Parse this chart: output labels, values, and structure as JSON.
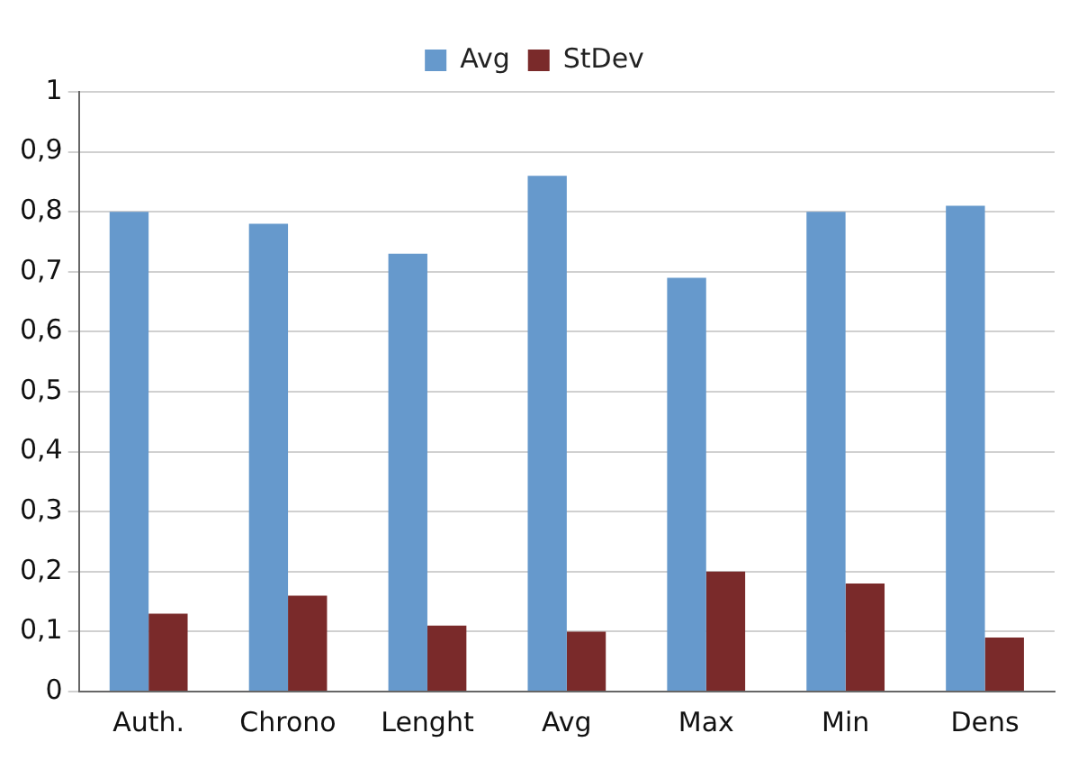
{
  "chart_data": {
    "type": "bar",
    "categories": [
      "Auth.",
      "Chrono",
      "Lenght",
      "Avg",
      "Max",
      "Min",
      "Dens"
    ],
    "series": [
      {
        "name": "Avg",
        "color": "#6699cc",
        "values": [
          0.8,
          0.78,
          0.73,
          0.86,
          0.69,
          0.8,
          0.81
        ]
      },
      {
        "name": "StDev",
        "color": "#7a2a2a",
        "values": [
          0.13,
          0.16,
          0.11,
          0.1,
          0.2,
          0.18,
          0.09
        ]
      }
    ],
    "ylim": [
      0,
      1
    ],
    "yticks": [
      0,
      {
        "value": 0.1,
        "label": "0,1"
      },
      {
        "value": 0.2,
        "label": "0,2"
      },
      {
        "value": 0.3,
        "label": "0,3"
      },
      {
        "value": 0.4,
        "label": "0,4"
      },
      {
        "value": 0.5,
        "label": "0,5"
      },
      {
        "value": 0.6,
        "label": "0,6"
      },
      {
        "value": 0.7,
        "label": "0,7"
      },
      {
        "value": 0.8,
        "label": "0,8"
      },
      {
        "value": 0.9,
        "label": "0,9"
      },
      1
    ],
    "grid": "y",
    "legend": "top"
  }
}
